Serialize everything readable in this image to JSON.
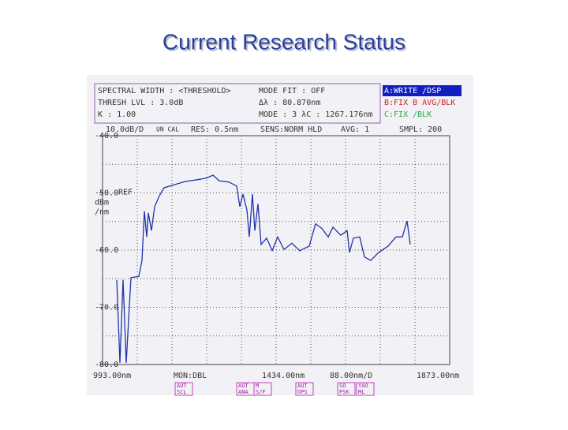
{
  "title": "Current Research Status",
  "screen": {
    "header_left": [
      "SPECTRAL WIDTH : <THRESHOLD>",
      "THRESH LVL :  3.0dB",
      "K :  1.00"
    ],
    "header_mid": [
      "MODE FIT  : OFF",
      "Δλ :    80.870nm",
      "MODE :   3   λC : 1267.176nm"
    ],
    "traces": [
      "A:WRITE  /DSP",
      "B:FIX B AVG/BLK",
      "C:FIX    /BLK"
    ],
    "status": [
      "10.0dB/D",
      "UN CAL",
      "RES: 0.5nm",
      "SENS:NORM HLD",
      "AVG:   1",
      "SMPL: 200"
    ],
    "ref": "REF",
    "unit": "dBm",
    "unit2": "/nm",
    "bottom": [
      "993.00nm",
      "MON:DBL",
      "1434.00nm",
      "88.00nm/D",
      "1873.00nm"
    ],
    "buttons": [
      [
        "AUT",
        "SCL"
      ],
      [
        "AUT",
        "ANA"
      ],
      [
        "M",
        "S/F"
      ],
      [
        "AUT",
        "OPS"
      ],
      [
        "SO",
        "PSK"
      ],
      [
        "YAO",
        "ML"
      ]
    ]
  },
  "chart_data": {
    "type": "line",
    "x": [
      1029,
      1037,
      1045,
      1053,
      1065,
      1085,
      1093,
      1099,
      1105,
      1109,
      1117,
      1125,
      1137,
      1149,
      1173,
      1203,
      1233,
      1257,
      1273,
      1289,
      1313,
      1333,
      1341,
      1349,
      1359,
      1365,
      1373,
      1379,
      1387,
      1395,
      1409,
      1423,
      1437,
      1453,
      1473,
      1493,
      1517,
      1533,
      1549,
      1565,
      1577,
      1597,
      1613,
      1619,
      1629,
      1645,
      1657,
      1673,
      1693,
      1717,
      1737,
      1753,
      1765,
      1773
    ],
    "series": [
      {
        "name": "A",
        "color": "#2233aa",
        "values": [
          -65.2,
          -79.7,
          -65.2,
          -79.7,
          -64.8,
          -64.6,
          -61.8,
          -53.2,
          -57.7,
          -53.5,
          -56.6,
          -52.4,
          -50.5,
          -49.1,
          -48.6,
          -48.0,
          -47.7,
          -47.4,
          -46.9,
          -47.9,
          -48.1,
          -48.8,
          -52.4,
          -50.2,
          -53.0,
          -57.7,
          -50.2,
          -56.6,
          -51.9,
          -59.0,
          -57.9,
          -60.1,
          -57.7,
          -59.9,
          -58.8,
          -60.1,
          -59.3,
          -55.4,
          -56.2,
          -57.7,
          -56.0,
          -57.4,
          -56.6,
          -60.4,
          -57.9,
          -57.7,
          -61.2,
          -61.8,
          -60.4,
          -59.3,
          -57.7,
          -57.7,
          -54.9,
          -59.0
        ]
      }
    ],
    "xlim": [
      993,
      1873
    ],
    "ylim": [
      -80,
      -40
    ],
    "yticks": [
      {
        "value": -40,
        "label": "-40.0"
      },
      {
        "value": -50,
        "label": "-50.0"
      },
      {
        "value": -60,
        "label": "-60.0"
      },
      {
        "value": -70,
        "label": "-70.0"
      },
      {
        "value": -80,
        "label": "-80.0"
      }
    ],
    "grid": true
  }
}
